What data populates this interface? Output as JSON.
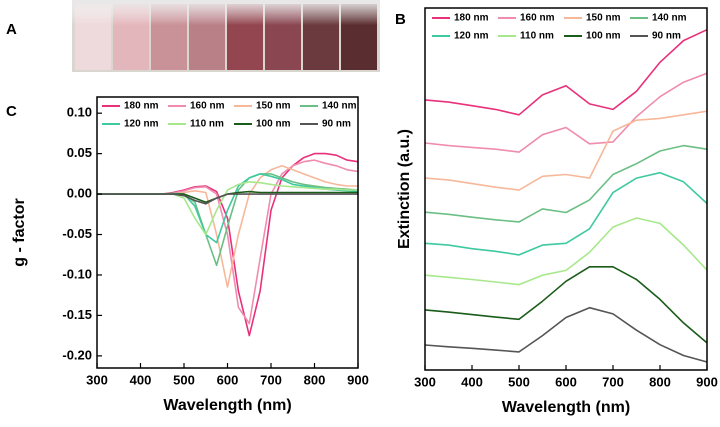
{
  "panel_a": {
    "label": "A"
  },
  "chart_data": [
    {
      "type": "line",
      "label": "B",
      "ylabel": "Extinction (a.u.)",
      "xlabel": "Wavelength (nm)",
      "xlim": [
        300,
        900
      ],
      "xticks": [
        300,
        400,
        500,
        600,
        700,
        800,
        900
      ],
      "ylim": [
        0,
        10
      ],
      "x": [
        300,
        350,
        400,
        450,
        500,
        550,
        600,
        650,
        700,
        750,
        800,
        850,
        900
      ],
      "series": [
        {
          "name": "180 nm",
          "color": "#e8317a",
          "values": [
            7.46,
            7.4,
            7.3,
            7.2,
            7.05,
            7.6,
            7.85,
            7.35,
            7.2,
            7.7,
            8.5,
            9.1,
            9.4
          ]
        },
        {
          "name": "160 nm",
          "color": "#f08cae",
          "values": [
            6.27,
            6.2,
            6.15,
            6.1,
            6.02,
            6.5,
            6.7,
            6.25,
            6.3,
            7.0,
            7.55,
            7.95,
            8.2
          ]
        },
        {
          "name": "150 nm",
          "color": "#f7b89a",
          "values": [
            5.3,
            5.25,
            5.15,
            5.05,
            4.97,
            5.35,
            5.4,
            5.3,
            6.6,
            6.9,
            6.95,
            7.05,
            7.15
          ]
        },
        {
          "name": "140 nm",
          "color": "#6cbf84",
          "values": [
            4.36,
            4.3,
            4.22,
            4.15,
            4.09,
            4.45,
            4.35,
            4.7,
            5.4,
            5.7,
            6.05,
            6.2,
            6.1
          ]
        },
        {
          "name": "120 nm",
          "color": "#3ec9a0",
          "values": [
            3.5,
            3.45,
            3.35,
            3.28,
            3.18,
            3.45,
            3.5,
            3.9,
            4.9,
            5.3,
            5.45,
            5.2,
            4.6
          ]
        },
        {
          "name": "110 nm",
          "color": "#a8e88c",
          "values": [
            2.62,
            2.56,
            2.5,
            2.43,
            2.36,
            2.62,
            2.75,
            3.25,
            3.95,
            4.2,
            4.05,
            3.45,
            2.76
          ]
        },
        {
          "name": "100 nm",
          "color": "#1a5c1a",
          "values": [
            1.66,
            1.6,
            1.53,
            1.46,
            1.4,
            1.9,
            2.45,
            2.85,
            2.85,
            2.5,
            1.95,
            1.3,
            0.75
          ]
        },
        {
          "name": "90 nm",
          "color": "#555555",
          "values": [
            0.69,
            0.64,
            0.6,
            0.55,
            0.5,
            0.95,
            1.45,
            1.72,
            1.55,
            1.1,
            0.7,
            0.4,
            0.22
          ]
        }
      ]
    },
    {
      "type": "line",
      "label": "C",
      "ylabel": "g - factor",
      "xlabel": "Wavelength (nm)",
      "xlim": [
        300,
        900
      ],
      "xticks": [
        300,
        400,
        500,
        600,
        700,
        800,
        900
      ],
      "ylim": [
        -0.215,
        0.12
      ],
      "yticks": [
        {
          "value": -0.2,
          "label": "-0.20"
        },
        {
          "value": -0.15,
          "label": "-0.15"
        },
        {
          "value": -0.1,
          "label": "-0.10"
        },
        {
          "value": -0.05,
          "label": "-0.05"
        },
        {
          "value": 0,
          "label": "0.00"
        },
        {
          "value": 0.05,
          "label": "0.05"
        },
        {
          "value": 0.1,
          "label": "0.10"
        }
      ],
      "x": [
        300,
        325,
        350,
        375,
        400,
        425,
        450,
        475,
        500,
        525,
        550,
        575,
        600,
        625,
        650,
        675,
        700,
        725,
        750,
        775,
        800,
        825,
        850,
        875,
        900
      ],
      "series": [
        {
          "name": "180 nm",
          "color": "#e8317a",
          "values": [
            0,
            0,
            0,
            0,
            0,
            0,
            0,
            0.002,
            0.005,
            0.009,
            0.01,
            0.003,
            -0.03,
            -0.12,
            -0.175,
            -0.12,
            -0.02,
            0.02,
            0.035,
            0.045,
            0.05,
            0.05,
            0.048,
            0.042,
            0.04
          ]
        },
        {
          "name": "160 nm",
          "color": "#f08cae",
          "values": [
            0,
            0,
            0,
            0,
            0,
            0,
            0,
            0.001,
            0.004,
            0.008,
            0.009,
            0,
            -0.05,
            -0.14,
            -0.16,
            -0.08,
            0,
            0.025,
            0.035,
            0.04,
            0.042,
            0.038,
            0.035,
            0.03,
            0.028
          ]
        },
        {
          "name": "150 nm",
          "color": "#f7b89a",
          "values": [
            0,
            0,
            0,
            0,
            0,
            0,
            0,
            0,
            0.002,
            0.004,
            0.002,
            -0.05,
            -0.115,
            -0.05,
            0,
            0.02,
            0.03,
            0.035,
            0.03,
            0.025,
            0.02,
            0.015,
            0.012,
            0.01,
            0.01
          ]
        },
        {
          "name": "140 nm",
          "color": "#6cbf84",
          "values": [
            0,
            0,
            0,
            0,
            0,
            0,
            0,
            0.001,
            0,
            -0.01,
            -0.05,
            -0.088,
            -0.04,
            0.005,
            0.02,
            0.025,
            0.025,
            0.02,
            0.015,
            0.012,
            0.01,
            0.008,
            0.007,
            0.006,
            0.005
          ]
        },
        {
          "name": "120 nm",
          "color": "#3ec9a0",
          "values": [
            0,
            0,
            0,
            0,
            0,
            0,
            0,
            0,
            0,
            -0.015,
            -0.05,
            -0.06,
            -0.02,
            0.01,
            0.02,
            0.025,
            0.022,
            0.018,
            0.012,
            0.01,
            0.008,
            0.006,
            0.005,
            0.004,
            0.003
          ]
        },
        {
          "name": "110 nm",
          "color": "#a8e88c",
          "values": [
            0,
            0,
            0,
            0,
            0,
            0,
            0,
            0,
            -0.005,
            -0.03,
            -0.05,
            -0.02,
            0.005,
            0.012,
            0.015,
            0.014,
            0.012,
            0.01,
            0.009,
            0.008,
            0.007,
            0.006,
            0.006,
            0.005,
            0.005
          ]
        },
        {
          "name": "100 nm",
          "color": "#1a5c1a",
          "values": [
            0,
            0,
            0,
            0,
            0,
            0,
            0,
            0,
            0,
            -0.005,
            -0.01,
            -0.005,
            0,
            0.002,
            0.003,
            0.002,
            0.002,
            0.002,
            0.002,
            0.002,
            0.002,
            0.002,
            0.002,
            0.002,
            0.002
          ]
        },
        {
          "name": "90 nm",
          "color": "#555555",
          "values": [
            0,
            0,
            0,
            0,
            0,
            0,
            0,
            0,
            -0.002,
            -0.008,
            -0.012,
            -0.005,
            0,
            0,
            0,
            0,
            0,
            0,
            0,
            0,
            0,
            0,
            0,
            0,
            0
          ]
        }
      ]
    }
  ]
}
